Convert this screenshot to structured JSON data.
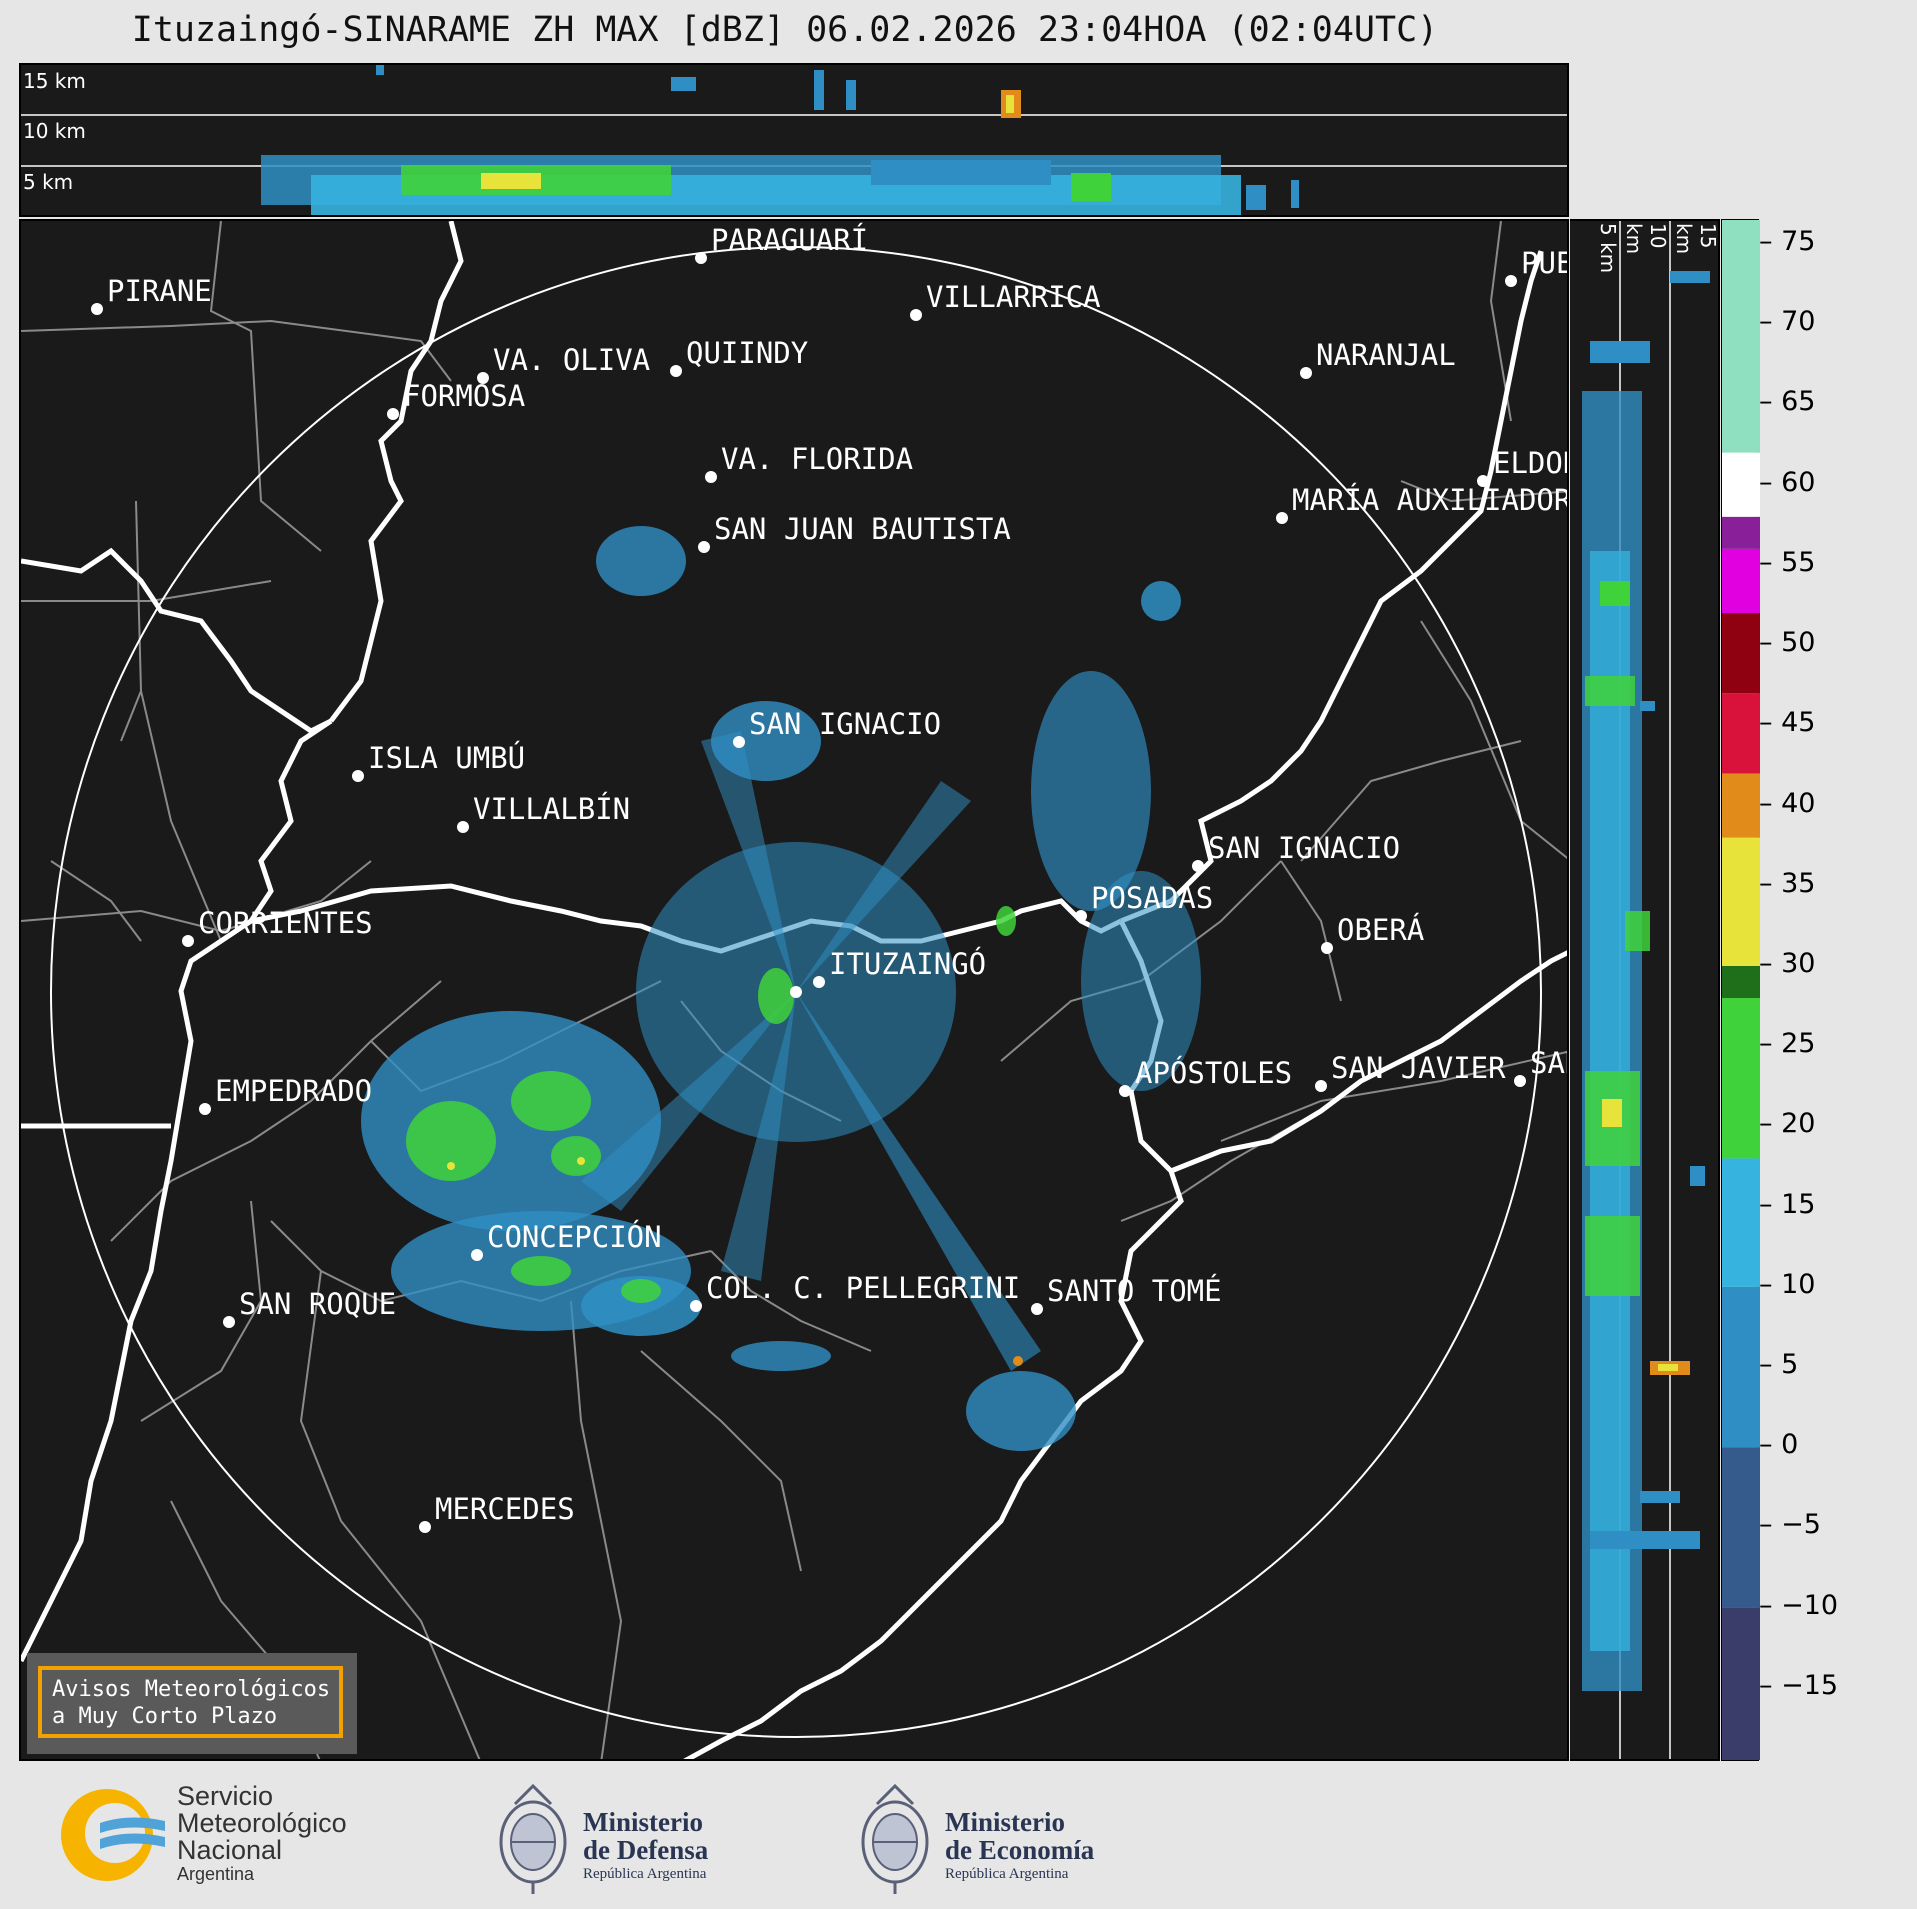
{
  "title": "Ituzaingó-SINARAME ZH MAX [dBZ] 06.02.2026 23:04HOA (02:04UTC)",
  "top_panel": {
    "km_labels": [
      "15 km",
      "10 km",
      "5 km"
    ]
  },
  "side_panel": {
    "km_labels": [
      "5 km",
      "10 km",
      "15 km"
    ]
  },
  "cities": [
    {
      "name": "PARAGUARÍ"
    },
    {
      "name": "VILLARRICA"
    },
    {
      "name": "PIRANE"
    },
    {
      "name": "QUIINDY"
    },
    {
      "name": "VA. OLIVA"
    },
    {
      "name": "NARANJAL"
    },
    {
      "name": "FORMOSA"
    },
    {
      "name": "VA. FLORIDA"
    },
    {
      "name": "ELDORADO"
    },
    {
      "name": "MARÍA AUXILIADORA"
    },
    {
      "name": "SAN JUAN BAUTISTA"
    },
    {
      "name": "SAN IGNACIO"
    },
    {
      "name": "ISLA UMBÚ"
    },
    {
      "name": "VILLALBÍN"
    },
    {
      "name": "SAN IGNACIO"
    },
    {
      "name": "POSADAS"
    },
    {
      "name": "CORRIENTES"
    },
    {
      "name": "ITUZAINGÓ"
    },
    {
      "name": "OBERÁ"
    },
    {
      "name": "EMPEDRADO"
    },
    {
      "name": "APÓSTOLES"
    },
    {
      "name": "SAN JAVIER"
    },
    {
      "name": "SAN"
    },
    {
      "name": "CONCEPCIÓN"
    },
    {
      "name": "COL. C. PELLEGRINI"
    },
    {
      "name": "SANTO TOMÉ"
    },
    {
      "name": "SAN ROQUE"
    },
    {
      "name": "MERCEDES"
    },
    {
      "name": "PUERTO"
    }
  ],
  "colorbar": {
    "label_unit": "dBZ",
    "ticks": [
      "75",
      "70",
      "65",
      "60",
      "55",
      "50",
      "45",
      "40",
      "35",
      "30",
      "25",
      "20",
      "15",
      "10",
      "5",
      "0",
      "−5",
      "−10",
      "−15"
    ],
    "range": [
      -19.5,
      76.5
    ],
    "colors": {
      "low": "#3a3d6a",
      "blue_mid": "#2f8fc4",
      "blue_high": "#36b3df",
      "green": "#3fd23a",
      "dark_green": "#1f6e1a",
      "yellow": "#e8e33a",
      "orange": "#e08b1a",
      "red": "#d8123a",
      "dark_red": "#8f0010",
      "magenta": "#e000e0",
      "purple": "#8a1f9a",
      "white": "#ffffff",
      "mint": "#8fe0c0"
    }
  },
  "aviso": {
    "line1": "Avisos Meteorológicos",
    "line2": "a Muy Corto Plazo"
  },
  "logos": {
    "smn": {
      "line1": "Servicio",
      "line2": "Meteorológico",
      "line3": "Nacional",
      "line4": "Argentina"
    },
    "defensa": {
      "line1": "Ministerio",
      "line2": "de Defensa",
      "line3": "República Argentina"
    },
    "economia": {
      "line1": "Ministerio",
      "line2": "de Economía",
      "line3": "República Argentina"
    }
  }
}
